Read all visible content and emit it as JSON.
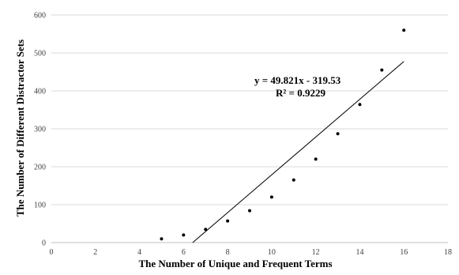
{
  "chart_data": {
    "type": "scatter",
    "title": "",
    "xlabel": "The Number of Unique and Frequent Terms",
    "ylabel": "The Number of Different Distractor Sets",
    "xlim": [
      0,
      18
    ],
    "ylim": [
      0,
      600
    ],
    "x_ticks": [
      0,
      2,
      4,
      6,
      8,
      10,
      12,
      14,
      16,
      18
    ],
    "y_ticks": [
      0,
      100,
      200,
      300,
      400,
      500,
      600
    ],
    "grid": "horizontal",
    "legend": "none",
    "marker_color": "#000000",
    "trendline_color": "#000000",
    "points": [
      {
        "x": 5,
        "y": 10
      },
      {
        "x": 6,
        "y": 20
      },
      {
        "x": 7,
        "y": 35
      },
      {
        "x": 8,
        "y": 57
      },
      {
        "x": 9,
        "y": 84
      },
      {
        "x": 10,
        "y": 120
      },
      {
        "x": 11,
        "y": 165
      },
      {
        "x": 12,
        "y": 220
      },
      {
        "x": 13,
        "y": 287
      },
      {
        "x": 14,
        "y": 364
      },
      {
        "x": 15,
        "y": 455
      },
      {
        "x": 16,
        "y": 560
      }
    ],
    "trendline": {
      "slope": 49.821,
      "intercept": -319.53,
      "x_range": [
        6.413,
        16
      ],
      "equation": "y = 49.821x - 319.53",
      "r_squared": "R² = 0.9229"
    }
  }
}
